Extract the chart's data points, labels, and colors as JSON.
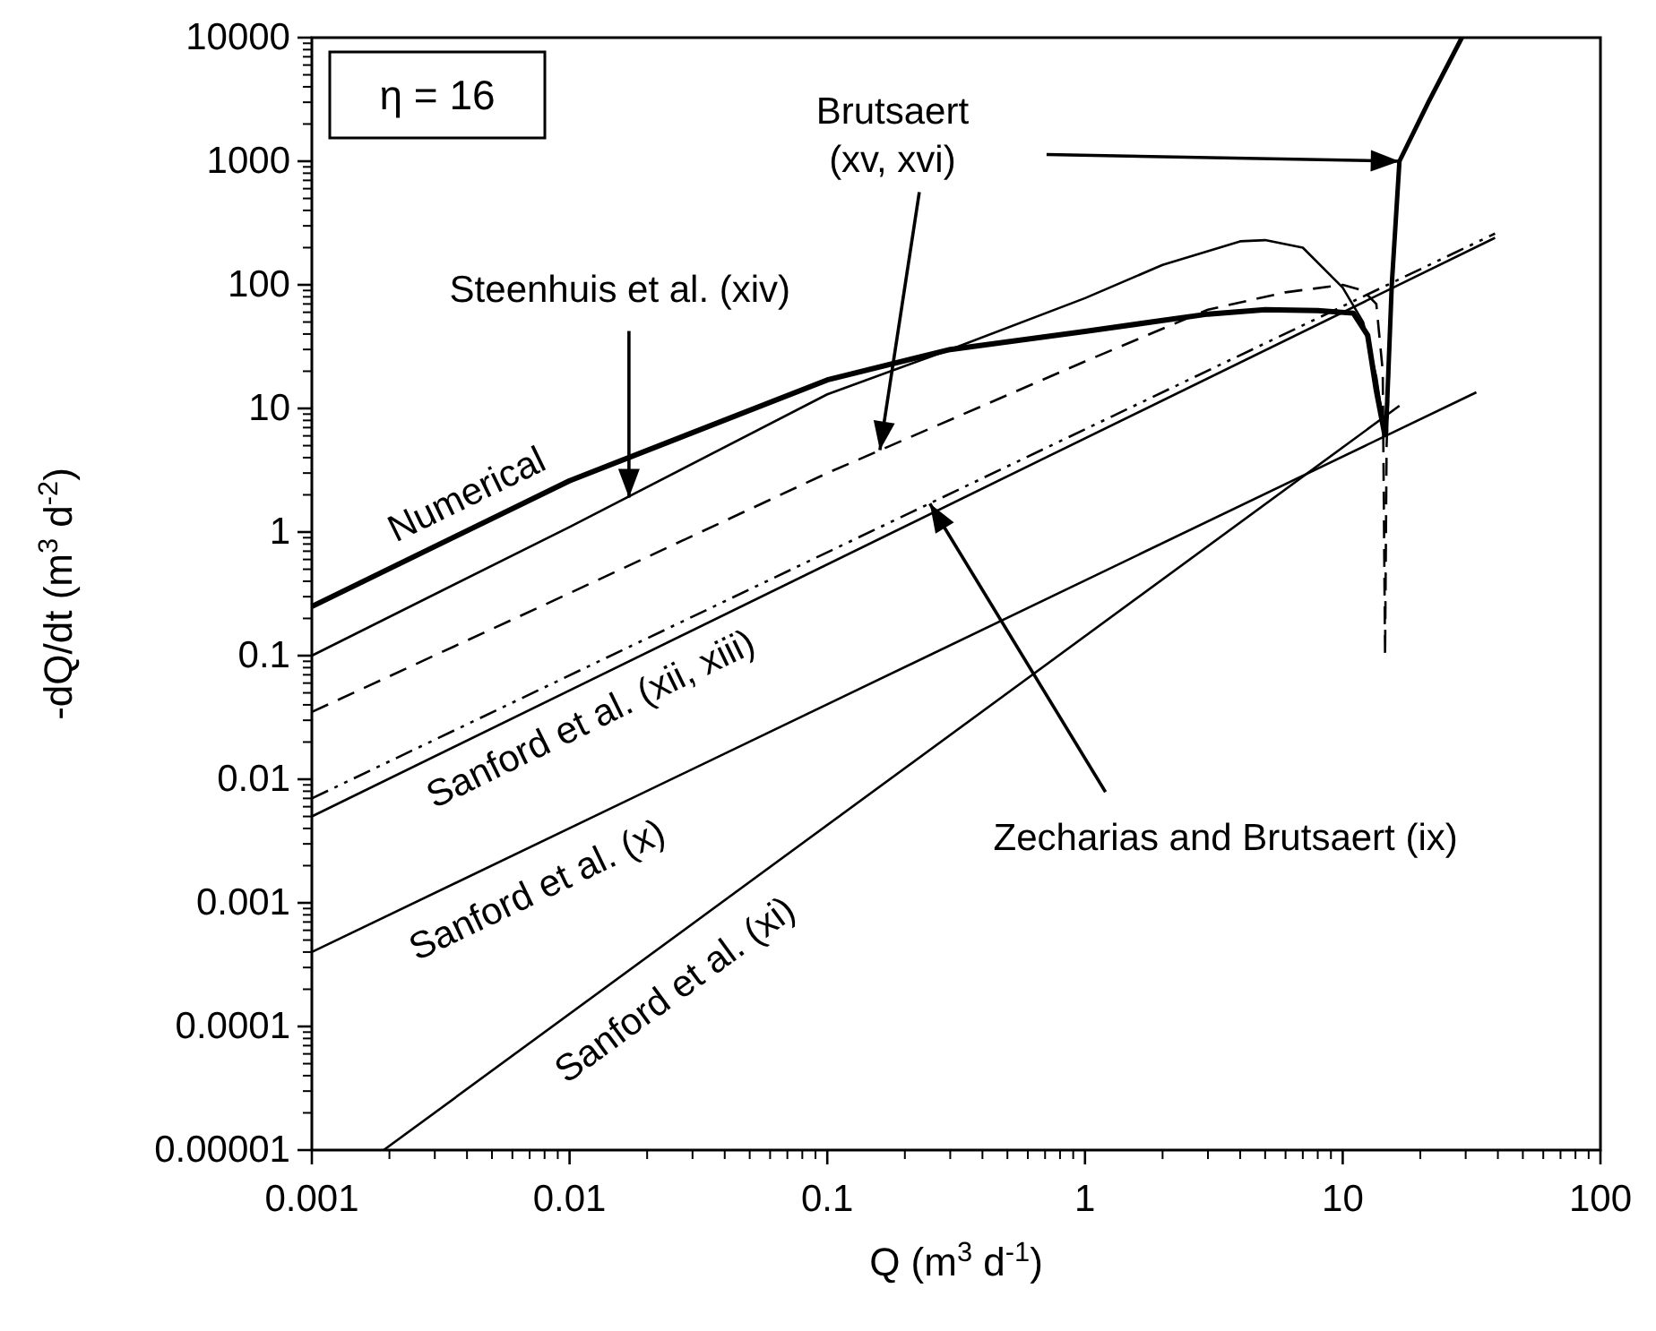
{
  "chart_data": {
    "type": "line",
    "xlabel": "Q (m$^{3}$ d$^{-1}$)",
    "ylabel": "-dQ/dt (m$^{3}$ d$^{-2}$)",
    "log": "xy",
    "xlim": [
      0.001,
      100
    ],
    "xticks": [
      0.001,
      0.01,
      0.1,
      1,
      10,
      100
    ],
    "ylim": [
      1e-05,
      10000
    ],
    "yticks": [
      {
        "value": 1e-05,
        "label": "0.00001"
      },
      0.0001,
      0.001,
      0.01,
      0.1,
      1,
      10,
      100,
      1000,
      10000
    ],
    "annotations": [
      "η = 16",
      {
        "text": "Steenhuis et al. (xiv)",
        "x": 0.017,
        "y": 1.9
      },
      {
        "text": "Brutsaert (xv, xvi)",
        "x": 0.16,
        "y": 4.6
      },
      {
        "text": "Zecharias and Brutsaert (ix)",
        "x": 0.25,
        "y": 1.7
      }
    ],
    "series": [
      {
        "name": "Numerical",
        "color": "#000000",
        "line_style": "solid",
        "x": [
          0.001,
          0.01,
          0.1,
          0.3,
          1,
          3,
          5,
          8,
          11,
          12.5,
          13.5,
          14.6
        ],
        "values": [
          0.25,
          2.6,
          17,
          30,
          42,
          58,
          63,
          62,
          59,
          39,
          14,
          6
        ]
      },
      {
        "color": "#000000",
        "line_style": "solid",
        "x": [
          0.001,
          0.01,
          0.1,
          0.3,
          1,
          2,
          4,
          5,
          7,
          10,
          12,
          13.5,
          14.6
        ],
        "values": [
          0.1,
          1.1,
          13,
          30,
          78,
          145,
          225,
          230,
          200,
          95,
          50,
          18,
          6
        ]
      },
      {
        "color": "#000000",
        "line_style": "dashed",
        "x": [
          0.001,
          0.01,
          0.1,
          1,
          3,
          6,
          10,
          12,
          13.5,
          14.3,
          14.6,
          14.8,
          15.5,
          16.6,
          21.5,
          29
        ],
        "values": [
          0.035,
          0.32,
          3,
          24,
          63,
          87,
          100,
          90,
          70,
          20,
          0.1,
          5,
          100,
          1000,
          3000,
          10000
        ]
      },
      {
        "color": "#000000",
        "line_style": "solid",
        "x": [
          14.7,
          15.5,
          16.6,
          21.5,
          29
        ],
        "values": [
          6,
          100,
          1000,
          3000,
          10000
        ]
      },
      {
        "color": "#000000",
        "line_style": "dashdot",
        "x": [
          0.001,
          39
        ],
        "values": [
          0.007,
          260
        ]
      },
      {
        "name": "Sanford et al. (xii, xiii)",
        "color": "#000000",
        "line_style": "solid",
        "x": [
          0.001,
          39
        ],
        "values": [
          0.005,
          240
        ]
      },
      {
        "name": "Sanford et al. (x)",
        "color": "#000000",
        "line_style": "solid",
        "x": [
          0.001,
          33
        ],
        "values": [
          0.0004,
          13.5
        ]
      },
      {
        "name": "Sanford et al. (xi)",
        "color": "#000000",
        "line_style": "solid",
        "x": [
          0.0019,
          16.6
        ],
        "values": [
          1e-05,
          10.5
        ]
      }
    ]
  }
}
